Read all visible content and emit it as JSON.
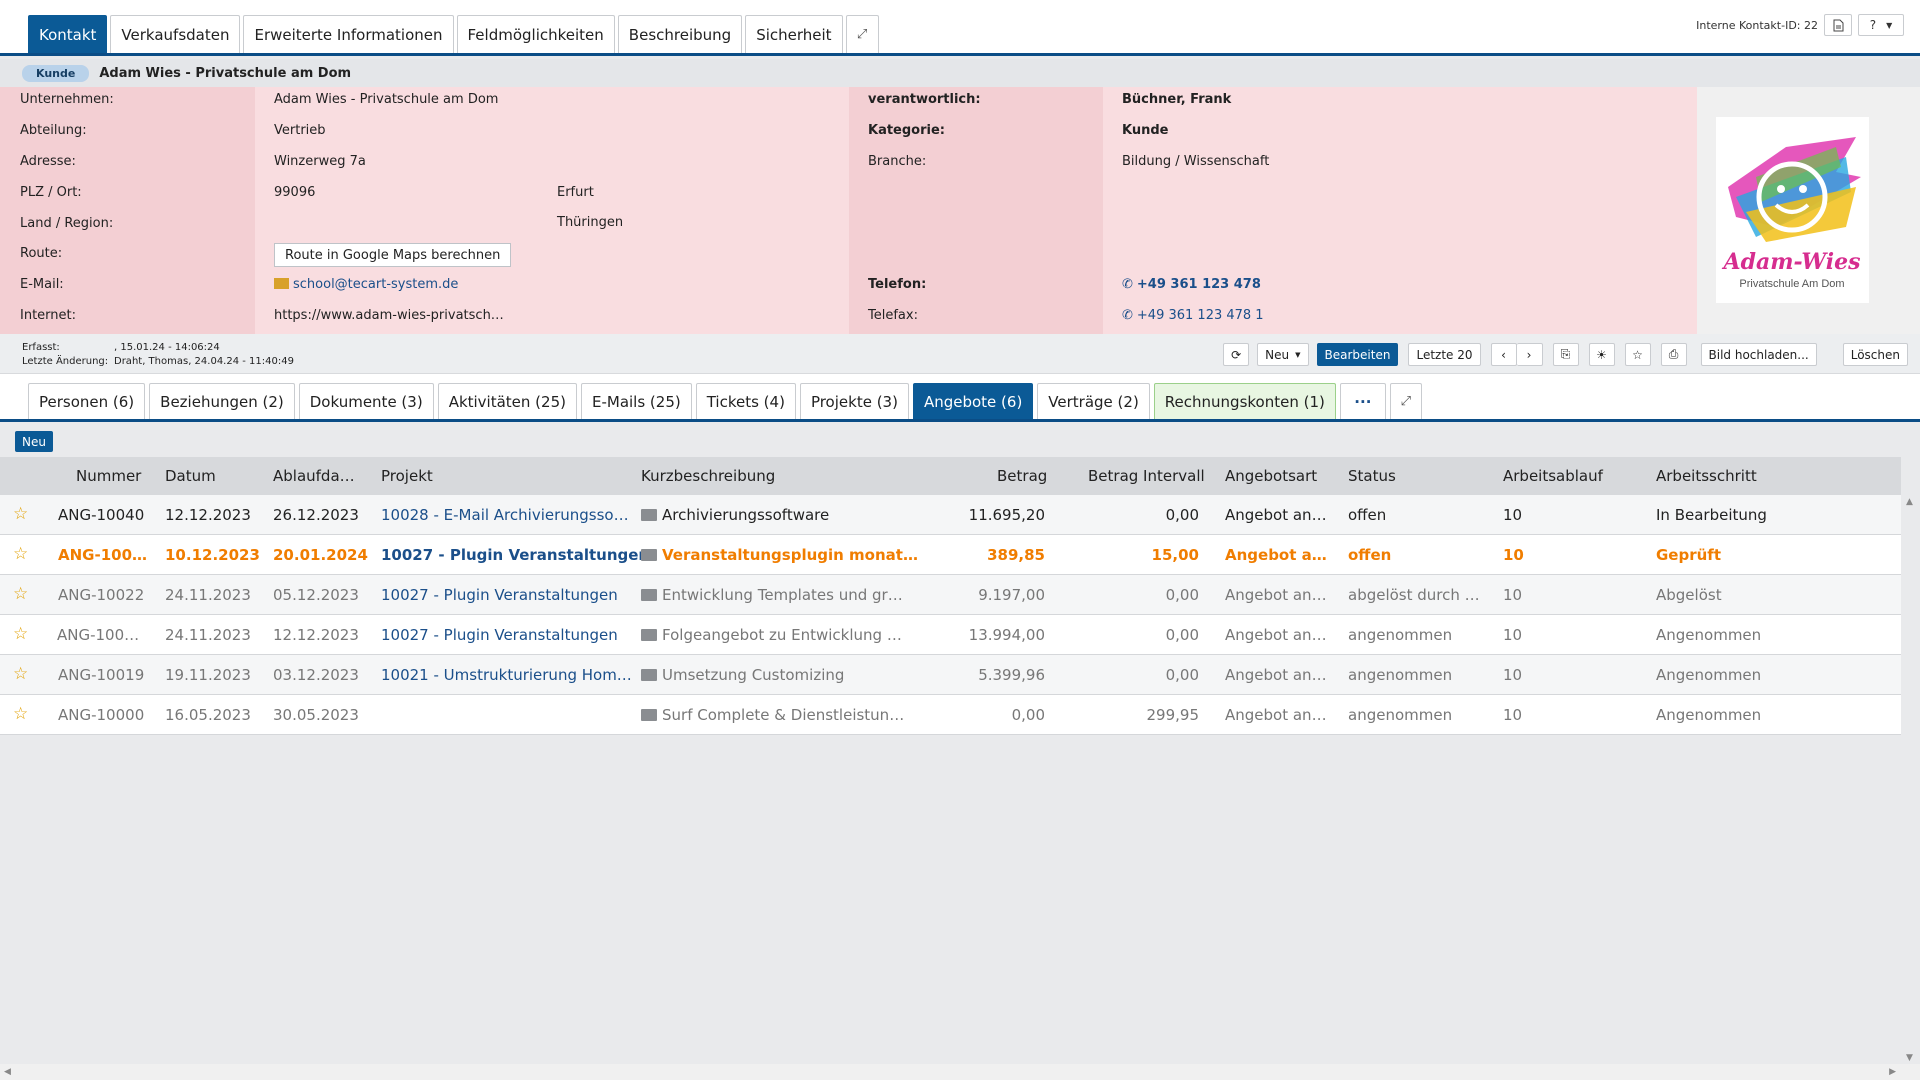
{
  "top_tabs": [
    "Kontakt",
    "Verkaufsdaten",
    "Erweiterte Informationen",
    "Feldmöglichkeiten",
    "Beschreibung",
    "Sicherheit"
  ],
  "internal_id": "Interne Kontakt-ID: 22",
  "help_label": "?",
  "badge": "Kunde",
  "company_name": "Adam Wies - Privatschule am Dom",
  "fields": {
    "unternehmen_label": "Unternehmen:",
    "unternehmen": "Adam Wies - Privatschule am Dom",
    "abteilung_label": "Abteilung:",
    "abteilung": "Vertrieb",
    "adresse_label": "Adresse:",
    "adresse": "Winzerweg 7a",
    "plz_label": "PLZ / Ort:",
    "plz": "99096",
    "ort": "Erfurt",
    "land_label": "Land / Region:",
    "region": "Thüringen",
    "route_label": "Route:",
    "route_button": "Route in Google Maps berechnen",
    "email_label": "E-Mail:",
    "email": "school@tecart-system.de",
    "internet_label": "Internet:",
    "internet": "https://www.adam-wies-privatsch…",
    "verantwortlich_label": "verantwortlich:",
    "verantwortlich": "Büchner, Frank",
    "kategorie_label": "Kategorie:",
    "kategorie": "Kunde",
    "branche_label": "Branche:",
    "branche": "Bildung / Wissenschaft",
    "telefon_label": "Telefon:",
    "telefon": "+49 361 123 478",
    "telefax_label": "Telefax:",
    "telefax": "+49 361 123 478 1"
  },
  "logo": {
    "name": "Adam-Wies",
    "subtitle": "Privatschule Am Dom"
  },
  "meta": {
    "erfasst_label": "Erfasst:",
    "erfasst": ", 15.01.24 - 14:06:24",
    "aenderung_label": "Letzte Änderung:",
    "aenderung": "Draht, Thomas, 24.04.24 - 11:40:49"
  },
  "toolbar": {
    "neu": "Neu",
    "bearbeiten": "Bearbeiten",
    "letzte": "Letzte 20",
    "bild": "Bild hochladen...",
    "loeschen": "Löschen"
  },
  "lower_tabs": [
    "Personen (6)",
    "Beziehungen (2)",
    "Dokumente (3)",
    "Aktivitäten (25)",
    "E-Mails (25)",
    "Tickets (4)",
    "Projekte (3)",
    "Angebote (6)",
    "Verträge (2)",
    "Rechnungskonten (1)"
  ],
  "more_label": "···",
  "new_button": "Neu",
  "table": {
    "headers": [
      "Nummer",
      "Datum",
      "Ablaufda…",
      "Projekt",
      "Kurzbeschreibung",
      "Betrag",
      "Betrag Intervall",
      "Angebotsart",
      "Status",
      "Arbeitsablauf",
      "Arbeitsschritt"
    ],
    "rows": [
      {
        "nummer": "ANG-10040",
        "datum": "12.12.2023",
        "ablauf": "26.12.2023",
        "projekt": "10028 - E-Mail Archivierungsso…",
        "kurz": "Archivierungssoftware",
        "betrag": "11.695,20",
        "intervall": "0,00",
        "art": "Angebot an…",
        "status": "offen",
        "ablaufnr": "10",
        "schritt": "In Bearbeitung"
      },
      {
        "nummer": "ANG-100…",
        "datum": "10.12.2023",
        "ablauf": "20.01.2024",
        "projekt": "10027 - Plugin Veranstaltungen",
        "kurz": "Veranstaltungsplugin monat…",
        "betrag": "389,85",
        "intervall": "15,00",
        "art": "Angebot a…",
        "status": "offen",
        "ablaufnr": "10",
        "schritt": "Geprüft"
      },
      {
        "nummer": "ANG-10022",
        "datum": "24.11.2023",
        "ablauf": "05.12.2023",
        "projekt": "10027 - Plugin Veranstaltungen",
        "kurz": "Entwicklung Templates und gr…",
        "betrag": "9.197,00",
        "intervall": "0,00",
        "art": "Angebot an…",
        "status": "abgelöst durch …",
        "ablaufnr": "10",
        "schritt": "Abgelöst"
      },
      {
        "nummer": "ANG-100…",
        "datum": "24.11.2023",
        "ablauf": "12.12.2023",
        "projekt": "10027 - Plugin Veranstaltungen",
        "kurz": "Folgeangebot zu Entwicklung …",
        "betrag": "13.994,00",
        "intervall": "0,00",
        "art": "Angebot an…",
        "status": "angenommen",
        "ablaufnr": "10",
        "schritt": "Angenommen"
      },
      {
        "nummer": "ANG-10019",
        "datum": "19.11.2023",
        "ablauf": "03.12.2023",
        "projekt": "10021 - Umstrukturierung Hom…",
        "kurz": "Umsetzung Customizing",
        "betrag": "5.399,96",
        "intervall": "0,00",
        "art": "Angebot an…",
        "status": "angenommen",
        "ablaufnr": "10",
        "schritt": "Angenommen"
      },
      {
        "nummer": "ANG-10000",
        "datum": "16.05.2023",
        "ablauf": "30.05.2023",
        "projekt": "",
        "kurz": "Surf Complete & Dienstleistun…",
        "betrag": "0,00",
        "intervall": "299,95",
        "art": "Angebot an…",
        "status": "angenommen",
        "ablaufnr": "10",
        "schritt": "Angenommen"
      }
    ]
  },
  "colors": {
    "accent": "#0b5a96",
    "highlight": "#f07d00",
    "info_bg": "#f9dde0"
  }
}
